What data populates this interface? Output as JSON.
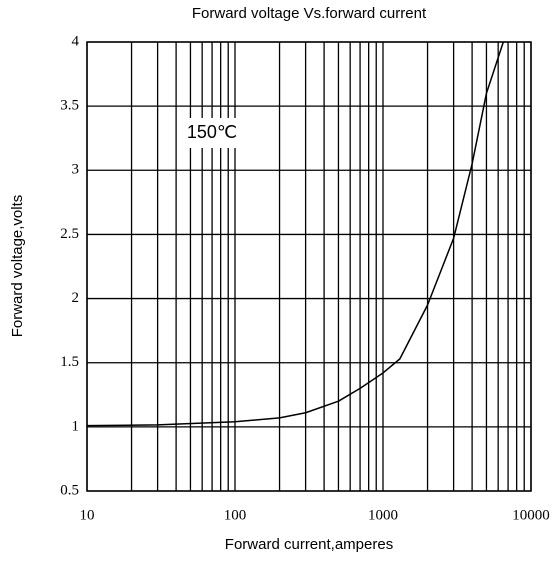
{
  "chart_data": {
    "type": "line",
    "title": "Forward voltage Vs.forward current",
    "x_label": "Forward current,amperes",
    "y_label": "Forward voltage,volts",
    "annotation": "150℃",
    "x": [
      10,
      30,
      100,
      200,
      300,
      500,
      700,
      1000,
      1300,
      2000,
      3000,
      4000,
      5000,
      6500
    ],
    "series": [
      {
        "name": "150℃",
        "color": "#000000",
        "values": [
          1.01,
          1.015,
          1.04,
          1.07,
          1.11,
          1.2,
          1.3,
          1.42,
          1.53,
          1.95,
          2.47,
          3.05,
          3.6,
          4.0
        ]
      }
    ],
    "x_log": true,
    "xlim": [
      10,
      10000
    ],
    "xticks": [
      10,
      100,
      1000,
      10000
    ],
    "ylim": [
      0.5,
      4
    ],
    "yticks": [
      0.5,
      1,
      1.5,
      2,
      2.5,
      3,
      3.5,
      4
    ],
    "grid": true,
    "minor_grid": true
  }
}
